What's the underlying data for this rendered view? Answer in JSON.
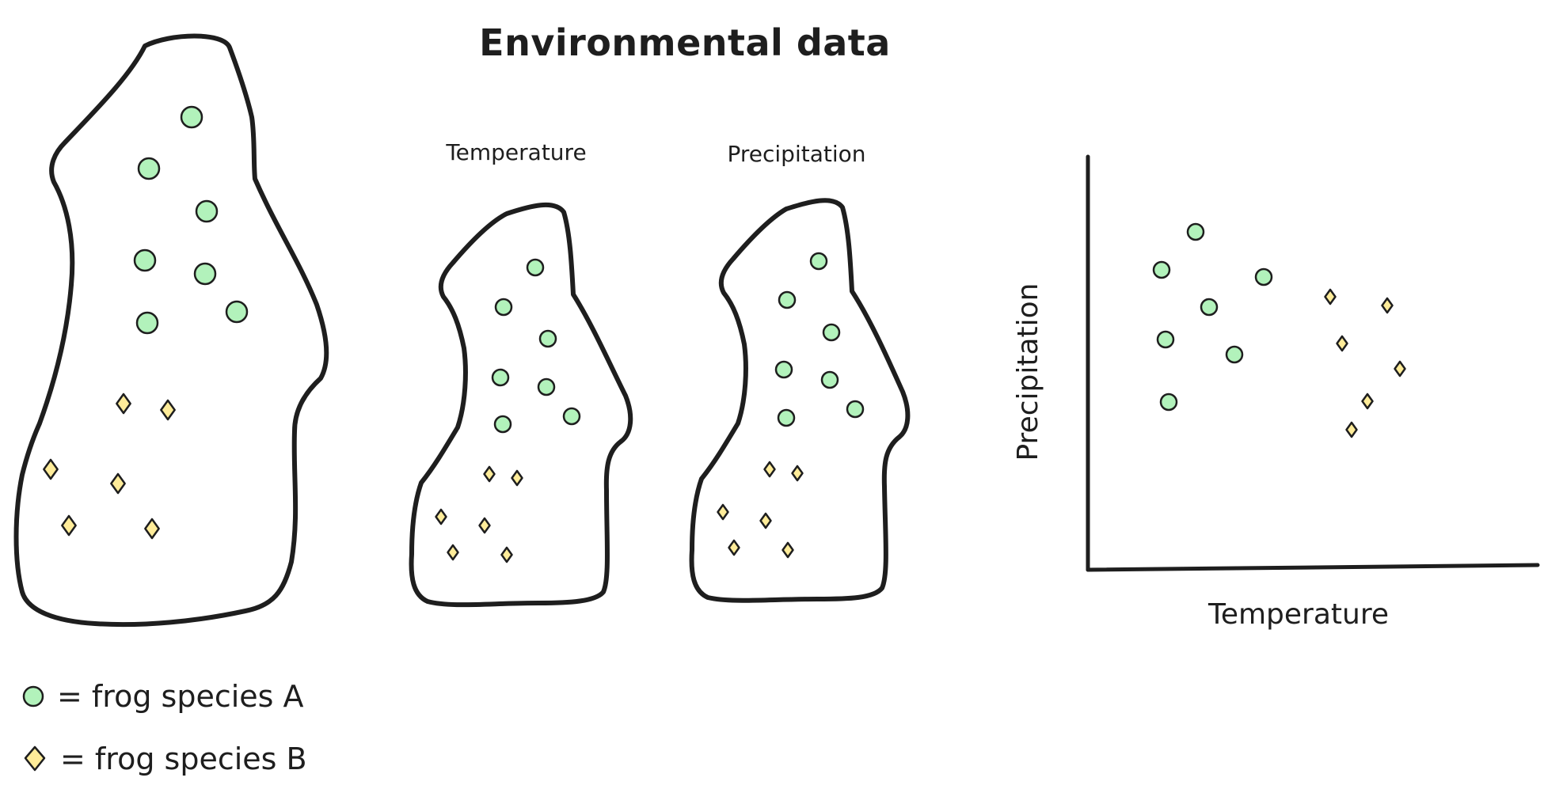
{
  "title": "Environmental data",
  "panels": {
    "temperature_label": "Temperature",
    "precipitation_label": "Precipitation"
  },
  "plot": {
    "xlabel": "Temperature",
    "ylabel": "Precipitation"
  },
  "legend": {
    "species_a": "= frog species A",
    "species_b": "= frog species B"
  },
  "colors": {
    "species_a": "#b2f2bb",
    "species_b": "#ffec99",
    "temperature_fill": "#ffc9c9",
    "precipitation_fill": "#a5d8ff",
    "outline": "#1e1e1e"
  },
  "icons": {
    "species_a": "circle",
    "species_b": "diamond"
  }
}
